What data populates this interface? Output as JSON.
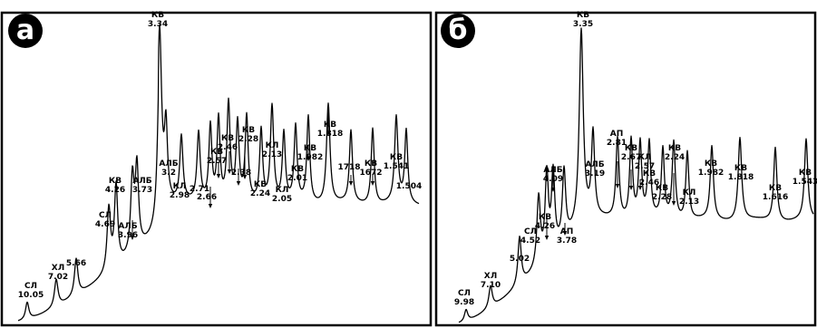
{
  "chart_data": [
    {
      "type": "line",
      "panel_label": "а",
      "peaks": [
        {
          "mineral": "СЛ",
          "d": "10.05",
          "h": 0.06
        },
        {
          "mineral": "ХЛ",
          "d": "7.02",
          "h": 0.1
        },
        {
          "mineral": "",
          "d": "5.66",
          "h": 0.14
        },
        {
          "mineral": "СЛ",
          "d": "4.69",
          "h": 0.26
        },
        {
          "mineral": "КВ",
          "d": "4.26",
          "h": 0.34
        },
        {
          "mineral": "АЛБ",
          "d": "3.96",
          "h": 0.33
        },
        {
          "mineral": "АЛБ",
          "d": "3.73",
          "h": 0.37
        },
        {
          "mineral": "КВ",
          "d": "3.34",
          "h": 1.0
        },
        {
          "mineral": "АЛБ",
          "d": "3.2",
          "h": 0.42
        },
        {
          "mineral": "КЛ",
          "d": "2.98",
          "h": 0.38
        },
        {
          "mineral": "",
          "d": "2.71",
          "h": 0.4
        },
        {
          "mineral": "",
          "d": "2.66",
          "h": 0.44
        },
        {
          "mineral": "КВ",
          "d": "2.57",
          "h": 0.48
        },
        {
          "mineral": "КВ",
          "d": "2.46",
          "h": 0.57
        },
        {
          "mineral": "",
          "d": "2.38",
          "h": 0.45
        },
        {
          "mineral": "КВ",
          "d": "2.28",
          "h": 0.49
        },
        {
          "mineral": "КВ",
          "d": "2.24",
          "h": 0.42
        },
        {
          "mineral": "КЛ",
          "d": "2.13",
          "h": 0.56
        },
        {
          "mineral": "КЛ",
          "d": "2.05",
          "h": 0.4
        },
        {
          "mineral": "КВ",
          "d": "2.01",
          "h": 0.44
        },
        {
          "mineral": "КВ",
          "d": "1.982",
          "h": 0.5
        },
        {
          "mineral": "КВ",
          "d": "1.818",
          "h": 0.58
        },
        {
          "mineral": "",
          "d": "1718",
          "h": 0.42
        },
        {
          "mineral": "КВ",
          "d": "1672",
          "h": 0.44
        },
        {
          "mineral": "КВ",
          "d": "1.541",
          "h": 0.5
        },
        {
          "mineral": "",
          "d": "1.504",
          "h": 0.42
        }
      ]
    },
    {
      "type": "line",
      "panel_label": "б",
      "peaks": [
        {
          "mineral": "СЛ",
          "d": "9.98",
          "h": 0.04
        },
        {
          "mineral": "ХЛ",
          "d": "7.10",
          "h": 0.08
        },
        {
          "mineral": "",
          "d": "5.02",
          "h": 0.19
        },
        {
          "mineral": "СЛ",
          "d": "4.52",
          "h": 0.29
        },
        {
          "mineral": "КВ",
          "d": "4.26",
          "h": 0.36
        },
        {
          "mineral": "АЛБ",
          "d": "4.09",
          "h": 0.35
        },
        {
          "mineral": "АП",
          "d": "3.78",
          "h": 0.33
        },
        {
          "mineral": "КВ",
          "d": "3.35",
          "h": 1.0
        },
        {
          "mineral": "АЛБ",
          "d": "3.19",
          "h": 0.45
        },
        {
          "mineral": "АП",
          "d": "2.81",
          "h": 0.43
        },
        {
          "mineral": "КВ",
          "d": "2.67",
          "h": 0.42
        },
        {
          "mineral": "КЛ",
          "d": "2.57",
          "h": 0.4
        },
        {
          "mineral": "КВ",
          "d": "2.46",
          "h": 0.4
        },
        {
          "mineral": "КВ",
          "d": "2.28",
          "h": 0.37
        },
        {
          "mineral": "КВ",
          "d": "2.24",
          "h": 0.41
        },
        {
          "mineral": "КЛ",
          "d": "2.13",
          "h": 0.36
        },
        {
          "mineral": "КВ",
          "d": "1.982",
          "h": 0.39
        },
        {
          "mineral": "КВ",
          "d": "1.818",
          "h": 0.44
        },
        {
          "mineral": "КВ",
          "d": "1.616",
          "h": 0.39
        },
        {
          "mineral": "КВ",
          "d": "1.543",
          "h": 0.43
        }
      ]
    }
  ]
}
